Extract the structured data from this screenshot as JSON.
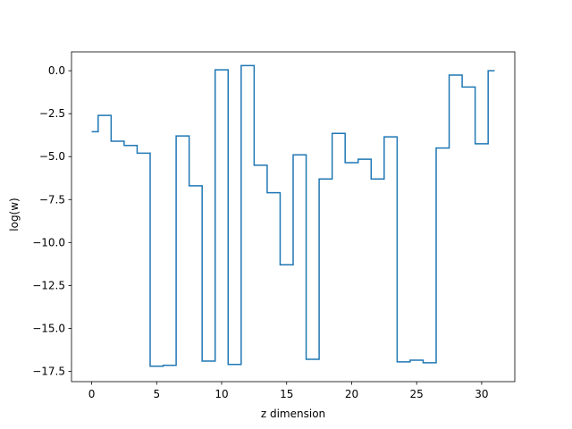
{
  "chart_data": {
    "type": "line",
    "drawstyle": "steps-mid",
    "title": "",
    "xlabel": "z dimension",
    "ylabel": "log(w)",
    "xlim": [
      -1.55,
      32.55
    ],
    "ylim": [
      -18.1,
      1.1
    ],
    "xticks": [
      0,
      5,
      10,
      15,
      20,
      25,
      30
    ],
    "xtick_labels": [
      "0",
      "5",
      "10",
      "15",
      "20",
      "25",
      "30"
    ],
    "yticks": [
      0.0,
      -2.5,
      -5.0,
      -7.5,
      -10.0,
      -12.5,
      -15.0,
      -17.5
    ],
    "ytick_labels": [
      "0.0",
      "−2.5",
      "−5.0",
      "−7.5",
      "−10.0",
      "−12.5",
      "−15.0",
      "−17.5"
    ],
    "grid": false,
    "series_color": "#1f77b4",
    "x": [
      0,
      1,
      2,
      3,
      4,
      5,
      6,
      7,
      8,
      9,
      10,
      11,
      12,
      13,
      14,
      15,
      16,
      17,
      18,
      19,
      20,
      21,
      22,
      23,
      24,
      25,
      26,
      27,
      28,
      29,
      30,
      31
    ],
    "y": [
      -3.55,
      -2.6,
      -4.1,
      -4.35,
      -4.8,
      -17.2,
      -17.15,
      -3.8,
      -6.7,
      -16.9,
      0.05,
      -17.1,
      0.3,
      -5.5,
      -7.1,
      -11.3,
      -4.9,
      -16.8,
      -6.3,
      -3.65,
      -5.35,
      -5.15,
      -6.3,
      -3.85,
      -16.95,
      -16.85,
      -17.0,
      -4.5,
      -0.25,
      -0.95,
      -4.25,
      0.0
    ]
  }
}
